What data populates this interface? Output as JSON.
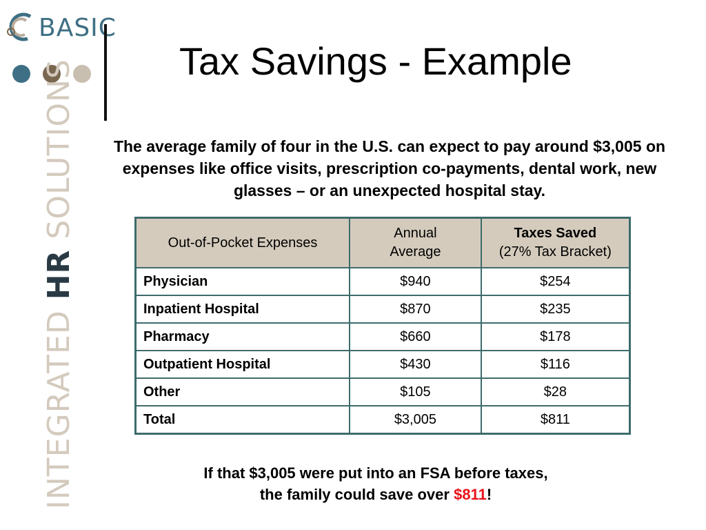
{
  "brand": {
    "logo_text": "BASIC",
    "tagline_light": "INTEGRATED",
    "tagline_bold": "HR",
    "tagline_end": "SOLUTIONS",
    "dot_colors": [
      "#3e6f84",
      "#7a6750",
      "#c9bfb1"
    ]
  },
  "slide": {
    "title": "Tax Savings - Example",
    "intro": "The average family of four in the U.S. can expect to pay around $3,005 on expenses like office visits, prescription co-payments, dental work, new glasses – or an unexpected hospital stay."
  },
  "table": {
    "headers": {
      "col1": "Out-of-Pocket Expenses",
      "col2_line1": "Annual",
      "col2_line2": "Average",
      "col3_line1": "Taxes Saved",
      "col3_line2": "(27% Tax Bracket)"
    },
    "rows": [
      {
        "name": "Physician",
        "average": "$940",
        "saved": "$254"
      },
      {
        "name": "Inpatient Hospital",
        "average": "$870",
        "saved": "$235"
      },
      {
        "name": "Pharmacy",
        "average": "$660",
        "saved": "$178"
      },
      {
        "name": "Outpatient Hospital",
        "average": "$430",
        "saved": "$116"
      },
      {
        "name": "Other",
        "average": "$105",
        "saved": "$28"
      },
      {
        "name": "Total",
        "average": "$3,005",
        "saved": "$811"
      }
    ]
  },
  "footer": {
    "line1": "If that $3,005 were put into an FSA before taxes,",
    "line2_prefix": "the family could save over ",
    "highlight": "$811",
    "line2_suffix": "!",
    "highlight_color": "#e8131a"
  }
}
